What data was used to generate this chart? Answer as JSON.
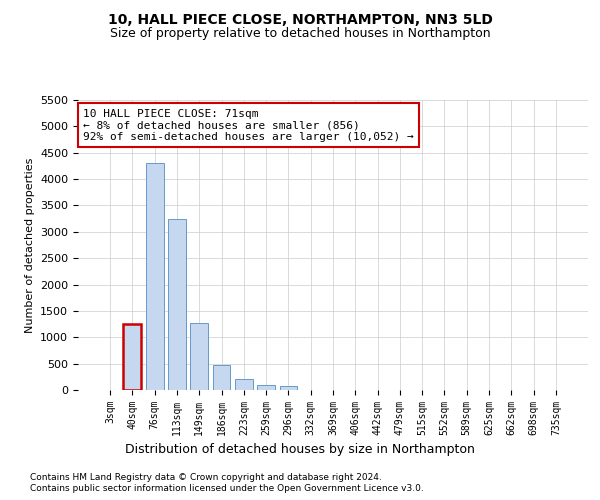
{
  "title": "10, HALL PIECE CLOSE, NORTHAMPTON, NN3 5LD",
  "subtitle": "Size of property relative to detached houses in Northampton",
  "xlabel": "Distribution of detached houses by size in Northampton",
  "ylabel": "Number of detached properties",
  "footnote1": "Contains HM Land Registry data © Crown copyright and database right 2024.",
  "footnote2": "Contains public sector information licensed under the Open Government Licence v3.0.",
  "annotation_title": "10 HALL PIECE CLOSE: 71sqm",
  "annotation_line1": "← 8% of detached houses are smaller (856)",
  "annotation_line2": "92% of semi-detached houses are larger (10,052) →",
  "bar_color": "#c5d8f0",
  "bar_edge_color": "#6699cc",
  "highlight_edge_color": "#cc0000",
  "categories": [
    "3sqm",
    "40sqm",
    "76sqm",
    "113sqm",
    "149sqm",
    "186sqm",
    "223sqm",
    "259sqm",
    "296sqm",
    "332sqm",
    "369sqm",
    "406sqm",
    "442sqm",
    "479sqm",
    "515sqm",
    "552sqm",
    "589sqm",
    "625sqm",
    "662sqm",
    "698sqm",
    "735sqm"
  ],
  "values": [
    0,
    1250,
    4300,
    3250,
    1280,
    480,
    200,
    90,
    70,
    0,
    0,
    0,
    0,
    0,
    0,
    0,
    0,
    0,
    0,
    0,
    0
  ],
  "highlight_index": 1,
  "ylim_max": 5500,
  "ytick_step": 500,
  "background_color": "#ffffff",
  "grid_color": "#cccccc",
  "title_fontsize": 10,
  "subtitle_fontsize": 9,
  "tick_fontsize": 7,
  "ylabel_fontsize": 8,
  "xlabel_fontsize": 9,
  "footnote_fontsize": 6.5,
  "annotation_fontsize": 8
}
